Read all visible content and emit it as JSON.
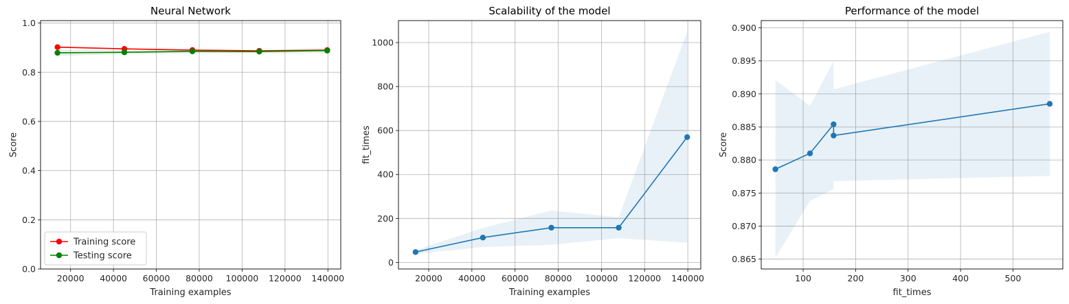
{
  "chart_data": [
    {
      "type": "line",
      "title": "Neural Network",
      "xlabel": "Training examples",
      "ylabel": "Score",
      "xlim": [
        6000,
        146000
      ],
      "ylim": [
        0.0,
        1.01
      ],
      "xticks": [
        20000,
        40000,
        60000,
        80000,
        100000,
        120000,
        140000
      ],
      "xtick_labels": [
        "20000",
        "40000",
        "60000",
        "80000",
        "100000",
        "120000",
        "140000"
      ],
      "yticks": [
        0.0,
        0.2,
        0.4,
        0.6,
        0.8,
        1.0
      ],
      "ytick_labels": [
        "0.0",
        "0.2",
        "0.4",
        "0.6",
        "0.8",
        "1.0"
      ],
      "grid": true,
      "legend": "lower-left",
      "x": [
        13900,
        45100,
        76800,
        108000,
        139700
      ],
      "series": [
        {
          "name": "Training score",
          "color": "#ff0000",
          "values": [
            0.902,
            0.895,
            0.89,
            0.887,
            0.89
          ],
          "band_lower": [
            0.899,
            0.893,
            0.888,
            0.886,
            0.889
          ],
          "band_upper": [
            0.905,
            0.897,
            0.892,
            0.888,
            0.891
          ]
        },
        {
          "name": "Testing score",
          "color": "#008000",
          "values": [
            0.879,
            0.881,
            0.885,
            0.884,
            0.888
          ],
          "band_lower": [
            0.866,
            0.874,
            0.877,
            0.877,
            0.878
          ],
          "band_upper": [
            0.892,
            0.888,
            0.893,
            0.891,
            0.899
          ]
        }
      ]
    },
    {
      "type": "line",
      "title": "Scalability of the model",
      "xlabel": "Training examples",
      "ylabel": "fit_times",
      "xlim": [
        6000,
        146000
      ],
      "ylim": [
        -30,
        1100
      ],
      "xticks": [
        20000,
        40000,
        60000,
        80000,
        100000,
        120000,
        140000
      ],
      "xtick_labels": [
        "20000",
        "40000",
        "60000",
        "80000",
        "100000",
        "120000",
        "140000"
      ],
      "yticks": [
        0,
        200,
        400,
        600,
        800,
        1000
      ],
      "ytick_labels": [
        "0",
        "200",
        "400",
        "600",
        "800",
        "1000"
      ],
      "grid": true,
      "x": [
        13900,
        45100,
        76800,
        108000,
        139700
      ],
      "series": [
        {
          "color": "#1f77b4",
          "values": [
            47,
            113,
            158,
            158,
            570
          ],
          "band_lower": [
            38,
            70,
            80,
            110,
            90
          ],
          "band_upper": [
            56,
            157,
            236,
            205,
            1050
          ]
        }
      ]
    },
    {
      "type": "line",
      "title": "Performance of the model",
      "xlabel": "fit_times",
      "ylabel": "Score",
      "xlim": [
        20,
        595
      ],
      "ylim": [
        0.8635,
        0.9011
      ],
      "xticks": [
        100,
        200,
        300,
        400,
        500
      ],
      "xtick_labels": [
        "100",
        "200",
        "300",
        "400",
        "500"
      ],
      "yticks": [
        0.865,
        0.87,
        0.875,
        0.88,
        0.885,
        0.89,
        0.895,
        0.9
      ],
      "ytick_labels": [
        "0.865",
        "0.870",
        "0.875",
        "0.880",
        "0.885",
        "0.890",
        "0.895",
        "0.900"
      ],
      "grid": true,
      "series": [
        {
          "color": "#1f77b4",
          "x": [
            47,
            113,
            158,
            158,
            570
          ],
          "values": [
            0.8786,
            0.881,
            0.8854,
            0.8837,
            0.8885
          ],
          "band_lower": [
            0.8652,
            0.8738,
            0.8756,
            0.8768,
            0.8776
          ],
          "band_upper": [
            0.8921,
            0.8882,
            0.895,
            0.8907,
            0.8994
          ]
        }
      ]
    }
  ]
}
